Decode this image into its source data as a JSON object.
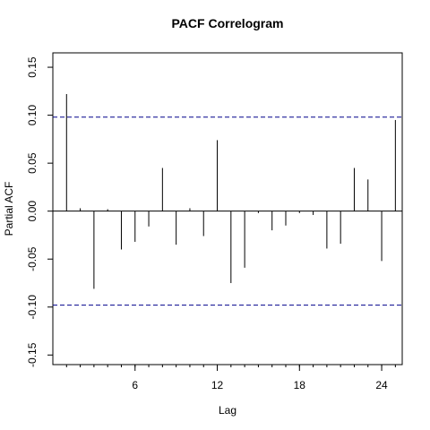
{
  "chart_data": {
    "type": "bar",
    "title": "PACF Correlogram",
    "xlabel": "Lag",
    "ylabel": "Partial ACF",
    "xlim": [
      0,
      25.5
    ],
    "ylim": [
      -0.16,
      0.165
    ],
    "x_ticks": [
      6,
      12,
      18,
      24
    ],
    "x_minor_ticks": [
      1,
      2,
      3,
      4,
      5,
      6,
      7,
      8,
      9,
      10,
      11,
      12,
      13,
      14,
      15,
      16,
      17,
      18,
      19,
      20,
      21,
      22,
      23,
      24,
      25
    ],
    "x_tick_labels": [
      "6",
      "12",
      "18",
      "24"
    ],
    "y_ticks": [
      -0.15,
      -0.1,
      -0.05,
      0.0,
      0.05,
      0.1,
      0.15
    ],
    "y_tick_labels": [
      "-0.15",
      "-0.10",
      "-0.05",
      "0.00",
      "0.05",
      "0.10",
      "0.15"
    ],
    "confidence_band": [
      0.098,
      -0.098
    ],
    "lags": [
      1,
      2,
      3,
      4,
      5,
      6,
      7,
      8,
      9,
      10,
      11,
      12,
      13,
      14,
      15,
      16,
      17,
      18,
      19,
      20,
      21,
      22,
      23,
      24,
      25
    ],
    "values": [
      0.122,
      0.003,
      -0.081,
      0.002,
      -0.04,
      -0.032,
      -0.016,
      0.045,
      -0.035,
      0.003,
      -0.026,
      0.074,
      -0.075,
      -0.059,
      -0.002,
      -0.02,
      -0.015,
      -0.002,
      -0.004,
      -0.039,
      -0.034,
      0.045,
      0.033,
      -0.052,
      0.095
    ],
    "grid": false,
    "zero_line": true,
    "colors": {
      "bars": "#000000",
      "band": "#00008b",
      "axis": "#000000"
    }
  }
}
